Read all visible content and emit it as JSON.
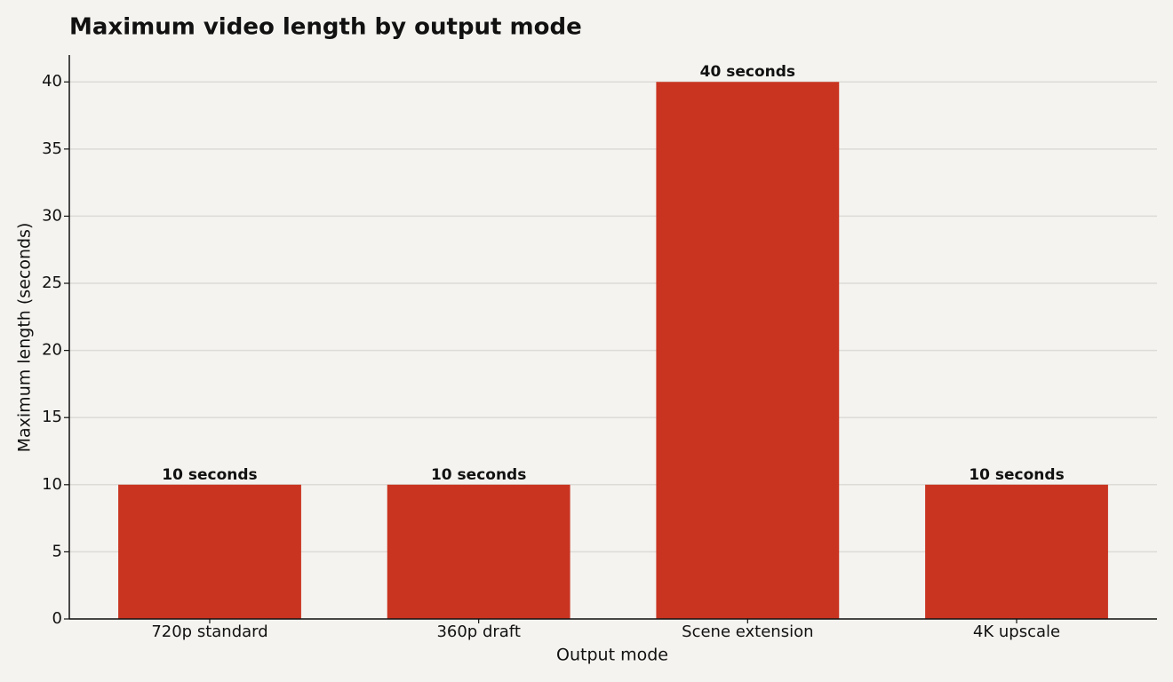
{
  "chart_data": {
    "type": "bar",
    "title": "Maximum video length by output mode",
    "x_label": "Output mode",
    "y_label": "Maximum length (seconds)",
    "categories": [
      "720p standard",
      "360p draft",
      "Scene extension",
      "4K upscale"
    ],
    "values": [
      10,
      10,
      40,
      10
    ],
    "value_labels": [
      "10 seconds",
      "10 seconds",
      "40 seconds",
      "10 seconds"
    ],
    "color": "#c93420",
    "ylim": [
      0,
      42
    ],
    "yticks": [
      0,
      5,
      10,
      15,
      20,
      25,
      30,
      35,
      40
    ],
    "grid": true
  }
}
